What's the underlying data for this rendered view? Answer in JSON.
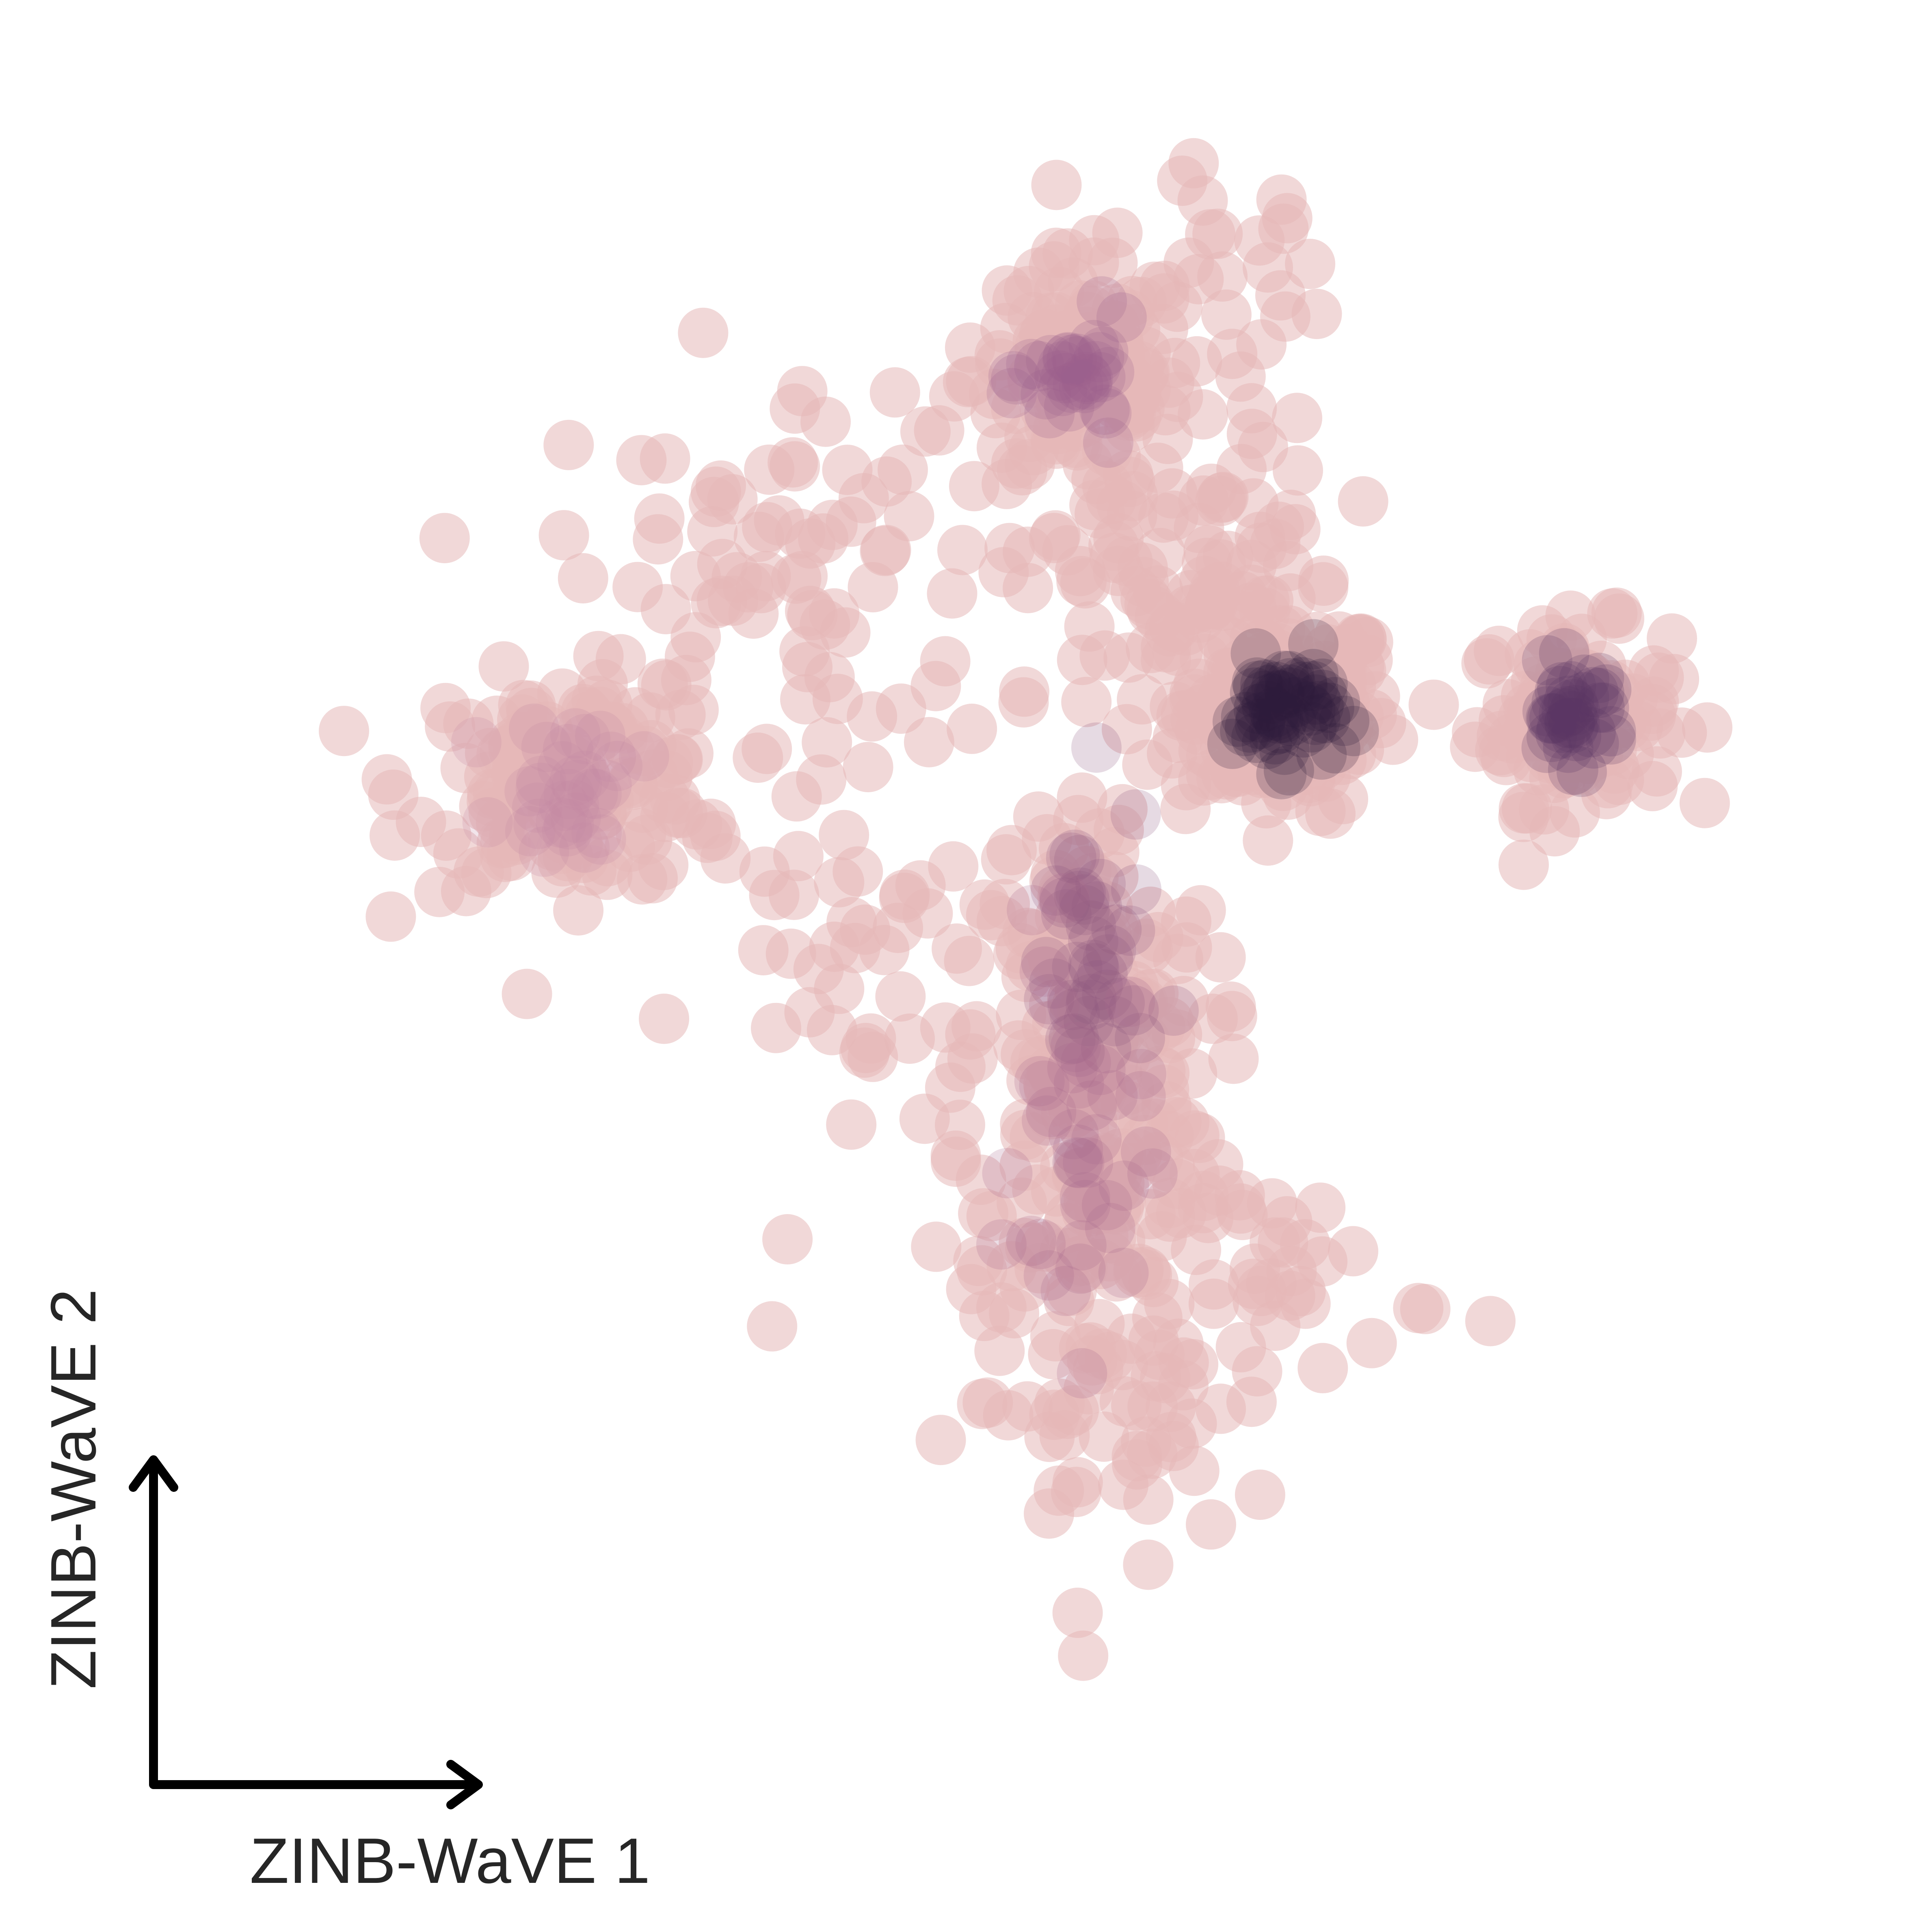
{
  "chart_data": {
    "type": "scatter",
    "title": "",
    "xlabel": "ZINB-WaVE 1",
    "ylabel": "ZINB-WaVE 2",
    "grid": false,
    "legend": "none",
    "xlim": [
      0,
      100
    ],
    "ylim": [
      0,
      100
    ],
    "point_color": "#e6b8b8",
    "point_opacity": 0.55,
    "clusters": [
      {
        "center": [
          66.2,
          62.1
        ],
        "spread": [
          3.2,
          3.0
        ],
        "count": 180
      },
      {
        "center": [
          84.2,
          61.9
        ],
        "spread": [
          3.0,
          2.7
        ],
        "count": 120
      },
      {
        "center": [
          53.5,
          82.6
        ],
        "spread": [
          3.3,
          3.6
        ],
        "count": 120
      },
      {
        "center": [
          22.0,
          57.7
        ],
        "spread": [
          5.0,
          3.2
        ],
        "count": 140
      },
      {
        "center": [
          54.0,
          40.0
        ],
        "spread": [
          3.8,
          9.0
        ],
        "count": 230
      },
      {
        "center": [
          60.0,
          70.0
        ],
        "spread": [
          5.0,
          5.0
        ],
        "count": 110
      },
      {
        "center": [
          35.0,
          70.0
        ],
        "spread": [
          7.0,
          7.0
        ],
        "count": 90
      },
      {
        "center": [
          56.0,
          20.0
        ],
        "spread": [
          5.0,
          5.0
        ],
        "count": 60
      },
      {
        "center": [
          66.0,
          28.0
        ],
        "spread": [
          5.0,
          3.0
        ],
        "count": 40
      },
      {
        "center": [
          62.0,
          88.0
        ],
        "spread": [
          3.5,
          3.5
        ],
        "count": 30
      },
      {
        "center": [
          42.0,
          45.0
        ],
        "spread": [
          6.0,
          7.0
        ],
        "count": 45
      }
    ]
  }
}
